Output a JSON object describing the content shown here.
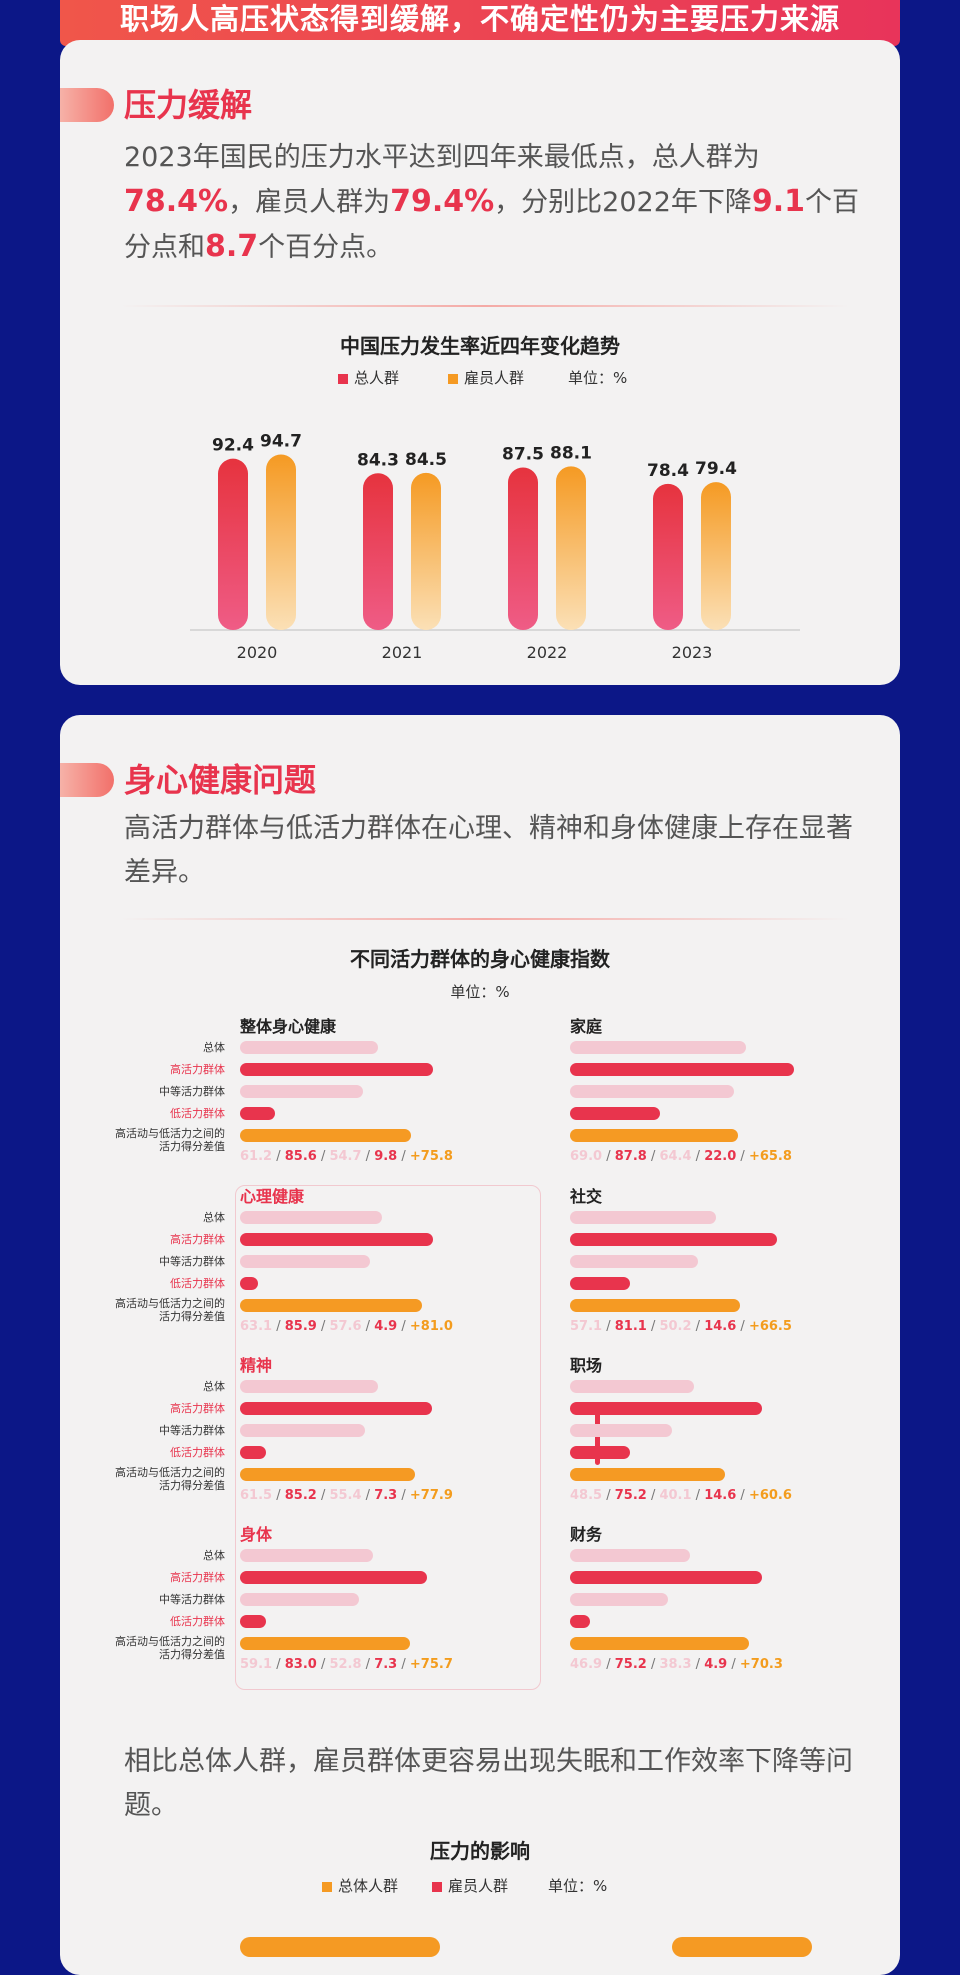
{
  "banner": {
    "title": "职场人高压状态得到缓解，不确定性仍为主要压力来源"
  },
  "section1": {
    "title": "压力缓解",
    "para_parts": [
      "2023年国民的压力水平达到四年来最低点，总人群为",
      "78.4%",
      "，雇员人群为",
      "79.4%",
      "，分别比2022年下降",
      "9.1",
      "个百分点和",
      "8.7",
      "个百分点。"
    ]
  },
  "chart1": {
    "title": "中国压力发生率近四年变化趋势",
    "unit": "单位：%",
    "colors": {
      "total": "#e8344d",
      "employee": "#f59a23"
    }
  },
  "section2": {
    "title": "身心健康问题",
    "para": "高活力群体与低活力群体在心理、精神和身体健康上存在显著差异。"
  },
  "chart2": {
    "title": "不同活力群体的身心健康指数",
    "unit": "单位：%",
    "row_labels": [
      "总体",
      "高活力群体",
      "中等活力群体",
      "低活力群体",
      "高活动与低活力之间的",
      "活力得分差值"
    ],
    "colors": {
      "total": "#f3c8d2",
      "high": "#e8344d",
      "mid": "#f3c8d2",
      "low": "#e8344d",
      "diff": "#f59a23"
    }
  },
  "section3": {
    "para": "相比总体人群，雇员群体更容易出现失眠和工作效率下降等问题。"
  },
  "chart3": {
    "title": "压力的影响",
    "legend": [
      "总体人群",
      "雇员人群"
    ],
    "unit": "单位：%",
    "colors": {
      "total": "#f59a23",
      "employee": "#e8344d"
    }
  },
  "chart_data": [
    {
      "type": "bar",
      "title": "中国压力发生率近四年变化趋势",
      "categories": [
        "2020",
        "2021",
        "2022",
        "2023"
      ],
      "series": [
        {
          "name": "总人群",
          "values": [
            92.4,
            84.3,
            87.5,
            78.4
          ]
        },
        {
          "name": "雇员人群",
          "values": [
            94.7,
            84.5,
            88.1,
            79.4
          ]
        }
      ],
      "ylim": [
        0,
        100
      ],
      "grid": false,
      "legend": "top-center"
    },
    {
      "type": "bar",
      "title": "不同活力群体的身心健康指数",
      "orientation": "horizontal",
      "categories": [
        "总体",
        "高活力群体",
        "中等活力群体",
        "低活力群体",
        "高活动与低活力之间的活力得分差值"
      ],
      "groups": [
        {
          "name": "整体身心健康",
          "values": [
            61.2,
            85.6,
            54.7,
            9.8,
            75.8
          ]
        },
        {
          "name": "心理健康",
          "values": [
            63.1,
            85.9,
            57.6,
            4.9,
            81.0
          ]
        },
        {
          "name": "精神",
          "values": [
            61.5,
            85.2,
            55.4,
            7.3,
            77.9
          ]
        },
        {
          "name": "身体",
          "values": [
            59.1,
            83.0,
            52.8,
            7.3,
            75.7
          ]
        },
        {
          "name": "家庭",
          "values": [
            69.0,
            87.8,
            64.4,
            22.0,
            65.8
          ]
        },
        {
          "name": "社交",
          "values": [
            57.1,
            81.1,
            50.2,
            14.6,
            66.5
          ]
        },
        {
          "name": "职场",
          "values": [
            48.5,
            75.2,
            40.1,
            14.6,
            60.6
          ]
        },
        {
          "name": "财务",
          "values": [
            46.9,
            75.2,
            38.3,
            4.9,
            70.3
          ]
        }
      ],
      "labels": [
        [
          "61.2",
          "85.6",
          "54.7",
          "9.8",
          "+75.8"
        ],
        [
          "63.1",
          "85.9",
          "57.6",
          "4.9",
          "+81.0"
        ],
        [
          "61.5",
          "85.2",
          "55.4",
          "7.3",
          "+77.9"
        ],
        [
          "59.1",
          "83.0",
          "52.8",
          "7.3",
          "+75.7"
        ],
        [
          "69.0",
          "87.8",
          "64.4",
          "22.0",
          "+65.8"
        ],
        [
          "57.1",
          "81.1",
          "50.2",
          "14.6",
          "+66.5"
        ],
        [
          "48.5",
          "75.2",
          "40.1",
          "14.6",
          "+60.6"
        ],
        [
          "46.9",
          "75.2",
          "38.3",
          "4.9",
          "+70.3"
        ]
      ]
    }
  ]
}
